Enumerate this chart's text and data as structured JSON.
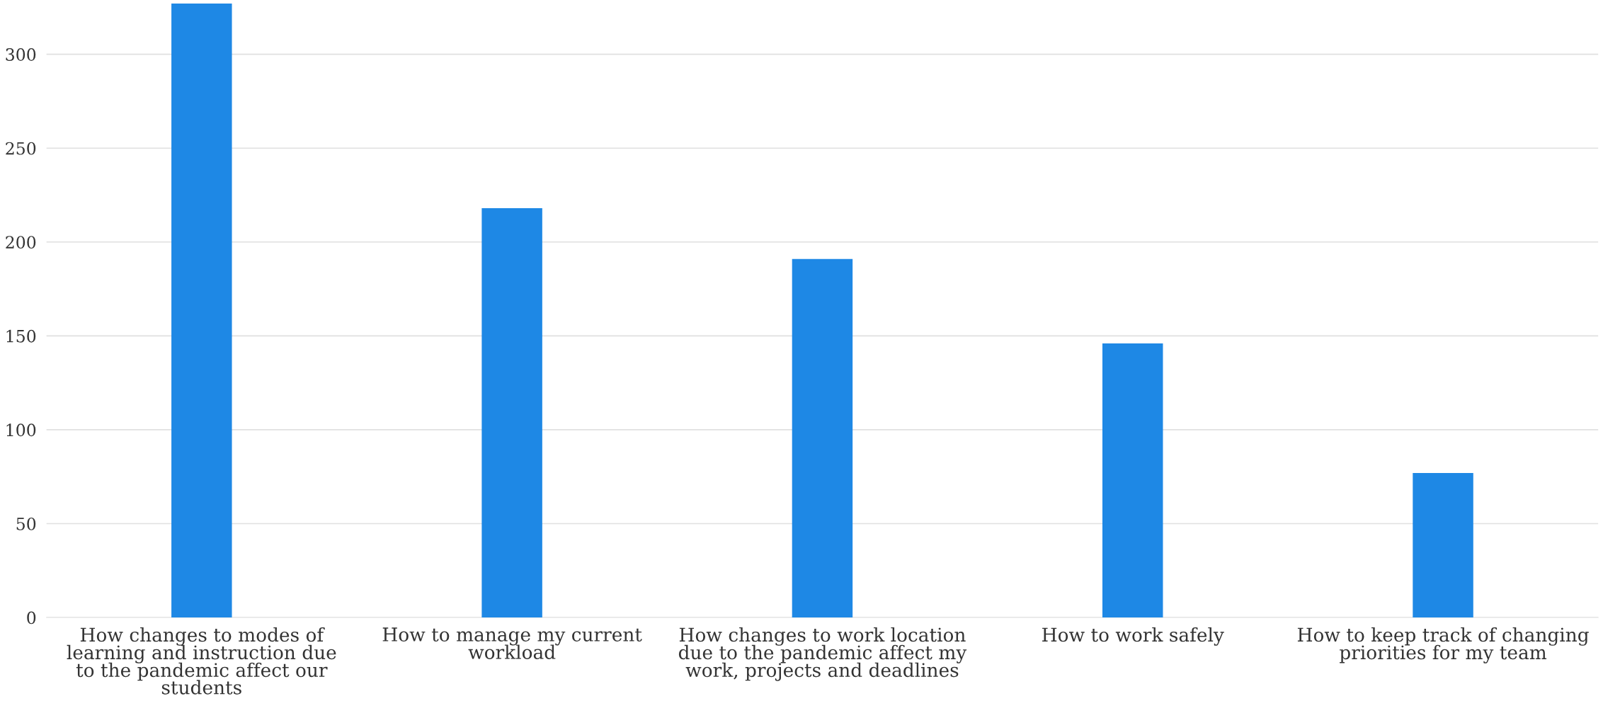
{
  "chart_data": {
    "type": "bar",
    "categories": [
      "How changes to modes of learning and instruction due to the pandemic affect our students",
      "How to manage my current workload",
      "How changes to work location due to the pandemic affect my work, projects and deadlines",
      "How to work safely",
      "How to keep track of changing priorities for my team"
    ],
    "values": [
      327,
      218,
      191,
      146,
      77
    ],
    "color": "#1e88e5",
    "ylim": [
      0,
      327
    ],
    "yticks": [
      0,
      50,
      100,
      150,
      200,
      250,
      300
    ],
    "grid": "y",
    "legend": false
  }
}
